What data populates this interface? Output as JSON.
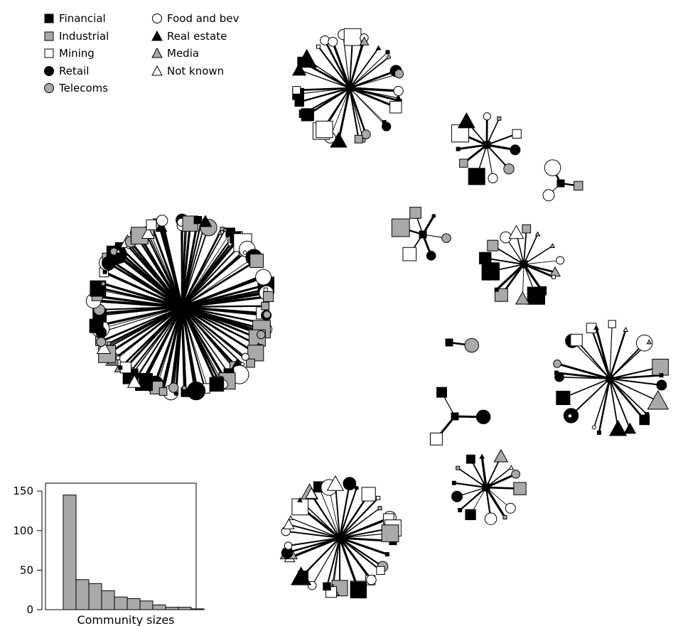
{
  "colors": {
    "black": "#000000",
    "gray": "#a9a9a9",
    "white": "#ffffff"
  },
  "legend": {
    "col1": [
      {
        "label": "Financial",
        "shape": "square",
        "fill": "black"
      },
      {
        "label": "Industrial",
        "shape": "square",
        "fill": "gray"
      },
      {
        "label": "Mining",
        "shape": "square",
        "fill": "white"
      },
      {
        "label": "Retail",
        "shape": "circle",
        "fill": "black"
      },
      {
        "label": "Telecoms",
        "shape": "circle",
        "fill": "gray"
      }
    ],
    "col2": [
      {
        "label": "Food and bev",
        "shape": "circle",
        "fill": "white"
      },
      {
        "label": "Real estate",
        "shape": "triangle",
        "fill": "black"
      },
      {
        "label": "Media",
        "shape": "triangle",
        "fill": "gray"
      },
      {
        "label": "Not known",
        "shape": "triangle",
        "fill": "white"
      }
    ]
  },
  "histogram": {
    "xlabel": "Community sizes",
    "yticks": [
      "0",
      "50",
      "100",
      "150"
    ],
    "chart_data": {
      "type": "bar",
      "values": [
        145,
        38,
        33,
        24,
        16,
        14,
        11,
        6,
        3,
        3,
        1
      ],
      "ylim": [
        0,
        160
      ],
      "xlabel": "Community sizes"
    }
  },
  "network": {
    "communities": [
      {
        "size": 145
      },
      {
        "size": 38
      },
      {
        "size": 33
      },
      {
        "size": 24
      },
      {
        "size": 16
      },
      {
        "size": 14
      },
      {
        "size": 11
      },
      {
        "size": 6
      },
      {
        "size": 3
      },
      {
        "size": 3
      },
      {
        "size": 1
      }
    ]
  }
}
